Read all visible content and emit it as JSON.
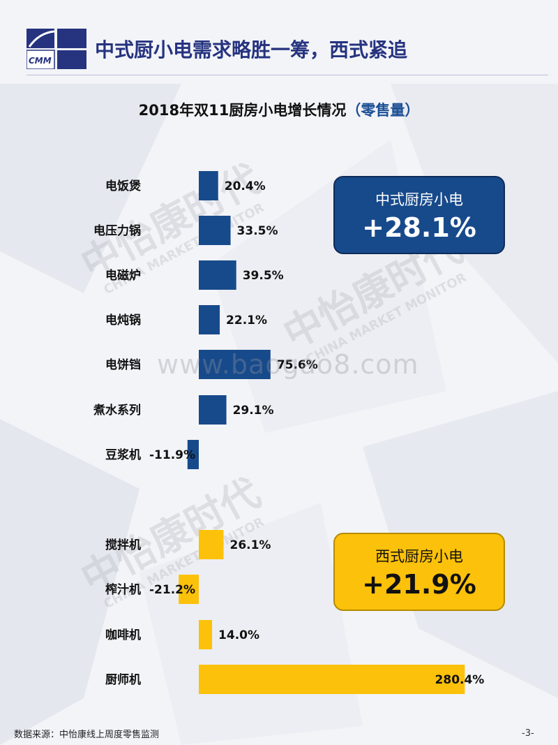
{
  "header": {
    "logo_text": "CMM",
    "title": "中式厨小电需求略胜一筹，西式紧追"
  },
  "chart_title_main": "2018年双11厨房小电增长情况",
  "chart_title_suffix": "（零售量）",
  "watermark": "www.baogao8.com",
  "watermark_logo_cn": "中怡康时代",
  "watermark_logo_en": "CHINA MARKET MONITOR",
  "callouts": {
    "chinese": {
      "label": "中式厨房小电",
      "value": "+28.1%"
    },
    "western": {
      "label": "西式厨房小电",
      "value": "+21.9%"
    }
  },
  "colors": {
    "chinese_series": "#174a8b",
    "western_series": "#fcc10a",
    "header_blue": "#26337f"
  },
  "chart_data": {
    "type": "bar",
    "orientation": "horizontal",
    "title": "2018年双11厨房小电增长情况（零售量）",
    "unit": "%",
    "groups": [
      {
        "name": "中式厨房小电",
        "color": "#174a8b",
        "categories": [
          "电饭煲",
          "电压力锅",
          "电磁炉",
          "电炖锅",
          "电饼铛",
          "煮水系列",
          "豆浆机"
        ],
        "values": [
          20.4,
          33.5,
          39.5,
          22.1,
          75.6,
          29.1,
          -11.9
        ],
        "labels": [
          "20.4%",
          "33.5%",
          "39.5%",
          "22.1%",
          "75.6%",
          "29.1%",
          "-11.9%"
        ]
      },
      {
        "name": "西式厨房小电",
        "color": "#fcc10a",
        "categories": [
          "搅拌机",
          "榨汁机",
          "咖啡机",
          "厨师机"
        ],
        "values": [
          26.1,
          -21.2,
          14.0,
          280.4
        ],
        "labels": [
          "26.1%",
          "-21.2%",
          "14.0%",
          "280.4%"
        ]
      }
    ]
  },
  "footer": {
    "source": "数据来源：中怡康线上周度零售监测",
    "page": "-3-"
  }
}
